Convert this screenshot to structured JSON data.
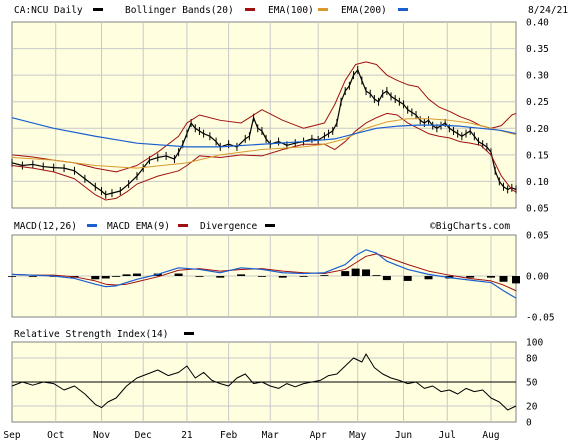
{
  "header": {
    "symbol_label": "CA:NCU Daily",
    "date": "8/24/21",
    "watermark": "©BigCharts.com"
  },
  "colors": {
    "background": "#ffffe0",
    "grid": "#c8c8c8",
    "price": "#000000",
    "bollinger": "#a01010",
    "ema100": "#d89a30",
    "ema200": "#1a5fd0",
    "macd": "#1a5fd0",
    "macd_ema": "#a01010",
    "divergence": "#000000",
    "rsi": "#000000"
  },
  "chart_data": [
    {
      "type": "line",
      "panel": "price",
      "legend": [
        "CA:NCU Daily",
        "Bollinger Bands(20)",
        "EMA(100)",
        "EMA(200)"
      ],
      "yticks": [
        0.05,
        0.1,
        0.15,
        0.2,
        0.25,
        0.3,
        0.35,
        0.4
      ],
      "ytick_labels": [
        "0.05",
        "0.10",
        "0.15",
        "0.20",
        "0.25",
        "0.30",
        "0.35",
        "0.40"
      ],
      "ylim": [
        0.05,
        0.4
      ],
      "xlabels": [
        "Sep",
        "Oct",
        "Nov",
        "Dec",
        "21",
        "Feb",
        "Mar",
        "Apr",
        "May",
        "Jun",
        "Jul",
        "Aug"
      ],
      "xlim": [
        0,
        242
      ],
      "xtick_positions": [
        0,
        21,
        43,
        63,
        84,
        104,
        124,
        147,
        166,
        188,
        209,
        230
      ],
      "series": [
        {
          "name": "CA:NCU Daily",
          "x": [
            0,
            5,
            10,
            15,
            20,
            25,
            30,
            35,
            40,
            43,
            45,
            48,
            52,
            56,
            60,
            63,
            66,
            70,
            74,
            78,
            80,
            82,
            84,
            86,
            88,
            90,
            92,
            95,
            98,
            100,
            104,
            108,
            112,
            114,
            116,
            118,
            120,
            122,
            124,
            128,
            132,
            136,
            140,
            144,
            147,
            150,
            152,
            154,
            156,
            158,
            160,
            162,
            164,
            166,
            168,
            170,
            172,
            174,
            176,
            178,
            180,
            182,
            184,
            186,
            188,
            190,
            192,
            194,
            196,
            198,
            200,
            202,
            204,
            206,
            208,
            210,
            212,
            214,
            216,
            218,
            220,
            222,
            224,
            226,
            228,
            230,
            232,
            234,
            236,
            238,
            240,
            242
          ],
          "y": [
            0.135,
            0.13,
            0.132,
            0.128,
            0.126,
            0.125,
            0.12,
            0.105,
            0.09,
            0.082,
            0.075,
            0.078,
            0.082,
            0.095,
            0.11,
            0.125,
            0.14,
            0.145,
            0.148,
            0.142,
            0.155,
            0.17,
            0.19,
            0.21,
            0.2,
            0.195,
            0.19,
            0.185,
            0.175,
            0.165,
            0.17,
            0.165,
            0.18,
            0.185,
            0.22,
            0.2,
            0.195,
            0.18,
            0.17,
            0.175,
            0.168,
            0.172,
            0.175,
            0.18,
            0.178,
            0.185,
            0.19,
            0.195,
            0.21,
            0.25,
            0.27,
            0.28,
            0.3,
            0.31,
            0.29,
            0.27,
            0.265,
            0.255,
            0.25,
            0.265,
            0.27,
            0.26,
            0.255,
            0.25,
            0.245,
            0.235,
            0.23,
            0.225,
            0.215,
            0.21,
            0.215,
            0.205,
            0.2,
            0.205,
            0.21,
            0.2,
            0.195,
            0.19,
            0.185,
            0.19,
            0.195,
            0.185,
            0.175,
            0.17,
            0.165,
            0.155,
            0.12,
            0.1,
            0.09,
            0.085,
            0.088,
            0.085
          ]
        },
        {
          "name": "Bollinger Bands(20)",
          "band": "upper",
          "x": [
            0,
            10,
            20,
            30,
            40,
            50,
            60,
            70,
            80,
            84,
            90,
            100,
            110,
            120,
            130,
            140,
            150,
            155,
            160,
            165,
            170,
            175,
            180,
            185,
            190,
            195,
            200,
            205,
            210,
            215,
            220,
            225,
            230,
            235,
            240,
            242
          ],
          "y": [
            0.15,
            0.146,
            0.14,
            0.135,
            0.125,
            0.118,
            0.13,
            0.155,
            0.185,
            0.21,
            0.225,
            0.215,
            0.21,
            0.235,
            0.215,
            0.2,
            0.21,
            0.245,
            0.29,
            0.32,
            0.325,
            0.32,
            0.3,
            0.29,
            0.282,
            0.278,
            0.255,
            0.24,
            0.232,
            0.222,
            0.215,
            0.205,
            0.2,
            0.205,
            0.225,
            0.228
          ]
        },
        {
          "name": "Bollinger Bands(20)",
          "band": "lower",
          "x": [
            0,
            10,
            20,
            30,
            40,
            45,
            50,
            55,
            60,
            70,
            80,
            84,
            90,
            100,
            110,
            120,
            130,
            140,
            150,
            155,
            160,
            165,
            170,
            175,
            180,
            185,
            190,
            195,
            200,
            205,
            210,
            215,
            220,
            225,
            230,
            235,
            240,
            242
          ],
          "y": [
            0.13,
            0.125,
            0.118,
            0.105,
            0.075,
            0.065,
            0.068,
            0.08,
            0.095,
            0.11,
            0.12,
            0.13,
            0.148,
            0.145,
            0.15,
            0.148,
            0.16,
            0.17,
            0.17,
            0.16,
            0.175,
            0.195,
            0.21,
            0.22,
            0.228,
            0.225,
            0.21,
            0.2,
            0.19,
            0.185,
            0.182,
            0.175,
            0.172,
            0.168,
            0.15,
            0.11,
            0.085,
            0.08
          ]
        },
        {
          "name": "EMA(100)",
          "x": [
            0,
            20,
            40,
            60,
            84,
            100,
            120,
            140,
            150,
            160,
            170,
            180,
            190,
            200,
            210,
            220,
            230,
            240,
            242
          ],
          "y": [
            0.145,
            0.14,
            0.13,
            0.125,
            0.135,
            0.15,
            0.16,
            0.165,
            0.17,
            0.18,
            0.2,
            0.212,
            0.218,
            0.218,
            0.215,
            0.21,
            0.2,
            0.19,
            0.188
          ]
        },
        {
          "name": "EMA(200)",
          "x": [
            0,
            20,
            40,
            60,
            84,
            100,
            120,
            140,
            155,
            165,
            175,
            185,
            195,
            205,
            215,
            225,
            235,
            242
          ],
          "y": [
            0.22,
            0.2,
            0.185,
            0.172,
            0.165,
            0.165,
            0.17,
            0.175,
            0.18,
            0.19,
            0.2,
            0.204,
            0.206,
            0.206,
            0.204,
            0.2,
            0.196,
            0.19
          ]
        }
      ]
    },
    {
      "type": "line",
      "panel": "macd",
      "legend": [
        "MACD(12,26)",
        "MACD EMA(9)",
        "Divergence"
      ],
      "yticks": [
        0.05,
        0.0,
        -0.05
      ],
      "ytick_labels": [
        "0.05",
        "0.00",
        "-0.05"
      ],
      "ylim": [
        -0.05,
        0.05
      ],
      "xlim": [
        0,
        242
      ],
      "series": [
        {
          "name": "MACD(12,26)",
          "x": [
            0,
            10,
            20,
            30,
            40,
            45,
            50,
            55,
            60,
            70,
            80,
            90,
            100,
            110,
            120,
            130,
            140,
            150,
            160,
            165,
            170,
            175,
            180,
            190,
            200,
            210,
            220,
            230,
            236,
            242
          ],
          "y": [
            0.002,
            0.001,
            0.0,
            -0.003,
            -0.01,
            -0.013,
            -0.012,
            -0.008,
            -0.004,
            0.002,
            0.01,
            0.008,
            0.004,
            0.01,
            0.008,
            0.004,
            0.003,
            0.004,
            0.014,
            0.025,
            0.032,
            0.028,
            0.018,
            0.008,
            0.002,
            -0.002,
            -0.005,
            -0.008,
            -0.018,
            -0.027
          ]
        },
        {
          "name": "MACD EMA(9)",
          "x": [
            0,
            10,
            20,
            30,
            40,
            45,
            50,
            55,
            60,
            70,
            80,
            90,
            100,
            110,
            120,
            130,
            140,
            150,
            160,
            165,
            170,
            175,
            180,
            190,
            200,
            210,
            220,
            230,
            236,
            242
          ],
          "y": [
            0.002,
            0.001,
            0.001,
            -0.001,
            -0.006,
            -0.01,
            -0.011,
            -0.01,
            -0.007,
            -0.001,
            0.007,
            0.009,
            0.006,
            0.008,
            0.009,
            0.006,
            0.004,
            0.003,
            0.008,
            0.016,
            0.024,
            0.027,
            0.023,
            0.014,
            0.006,
            0.001,
            -0.003,
            -0.006,
            -0.011,
            -0.018
          ]
        },
        {
          "name": "Divergence",
          "x": [
            0,
            10,
            20,
            30,
            40,
            45,
            50,
            55,
            60,
            70,
            80,
            90,
            100,
            110,
            120,
            130,
            140,
            150,
            160,
            165,
            170,
            175,
            180,
            190,
            200,
            210,
            220,
            230,
            236,
            242
          ],
          "y": [
            0.0,
            0.0,
            -0.001,
            -0.002,
            -0.004,
            -0.003,
            -0.001,
            0.002,
            0.003,
            0.003,
            0.003,
            -0.001,
            -0.002,
            0.002,
            -0.001,
            -0.002,
            -0.001,
            0.001,
            0.006,
            0.009,
            0.008,
            0.001,
            -0.005,
            -0.006,
            -0.004,
            -0.003,
            -0.002,
            -0.002,
            -0.007,
            -0.009
          ]
        }
      ]
    },
    {
      "type": "line",
      "panel": "rsi",
      "legend": [
        "Relative Strength Index(14)"
      ],
      "yticks": [
        100,
        80,
        50,
        20,
        0
      ],
      "ytick_labels": [
        "100",
        "80",
        "50",
        "20",
        "0"
      ],
      "ylim": [
        0,
        100
      ],
      "reference_line": 50,
      "xlim": [
        0,
        242
      ],
      "series": [
        {
          "name": "Relative Strength Index(14)",
          "x": [
            0,
            5,
            10,
            15,
            20,
            25,
            30,
            35,
            40,
            43,
            46,
            50,
            55,
            60,
            65,
            70,
            75,
            80,
            84,
            88,
            92,
            96,
            100,
            104,
            108,
            112,
            116,
            120,
            124,
            128,
            132,
            136,
            140,
            144,
            148,
            152,
            156,
            160,
            164,
            168,
            170,
            174,
            178,
            182,
            186,
            190,
            194,
            198,
            202,
            206,
            210,
            214,
            218,
            222,
            226,
            230,
            234,
            238,
            242
          ],
          "y": [
            45,
            50,
            46,
            50,
            48,
            40,
            45,
            35,
            22,
            18,
            25,
            30,
            45,
            55,
            60,
            65,
            58,
            62,
            70,
            55,
            62,
            52,
            48,
            45,
            55,
            60,
            48,
            50,
            45,
            42,
            48,
            44,
            48,
            50,
            52,
            58,
            60,
            70,
            80,
            75,
            85,
            68,
            60,
            55,
            52,
            48,
            50,
            42,
            45,
            38,
            40,
            35,
            42,
            38,
            40,
            30,
            25,
            15,
            20
          ]
        }
      ]
    }
  ]
}
